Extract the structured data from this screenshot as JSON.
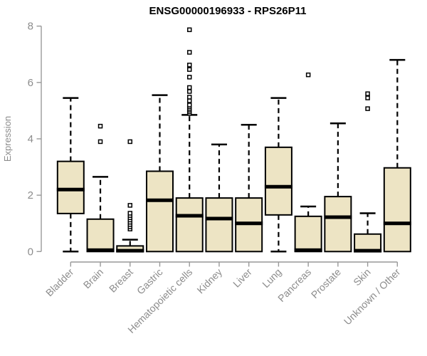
{
  "page": {
    "background": "#ffffff"
  },
  "chart_data": {
    "type": "boxplot",
    "title": "ENSG00000196933 - RPS26P11",
    "xlabel": "",
    "ylabel": "Expression",
    "ylim": [
      0,
      8
    ],
    "yticks": [
      0,
      2,
      4,
      6,
      8
    ],
    "grid": false,
    "legend": "none",
    "colors": {
      "box_fill": "#ede4c4",
      "box_stroke": "#000000",
      "median": "#000000",
      "whisker": "#000000",
      "axis": "#999999",
      "tick_text": "#8c8c8c",
      "title_text": "#000000"
    },
    "categories": [
      "Bladder",
      "Brain",
      "Breast",
      "Gastric",
      "Hematopoietic cells",
      "Kidney",
      "Liver",
      "Lung",
      "Pancreas",
      "Prostate",
      "Skin",
      "Unknown / Other"
    ],
    "series": [
      {
        "name": "Bladder",
        "whisker_low": 0,
        "q1": 1.35,
        "median": 2.2,
        "q3": 3.2,
        "whisker_high": 5.45,
        "outliers": []
      },
      {
        "name": "Brain",
        "whisker_low": 0,
        "q1": 0,
        "median": 0.05,
        "q3": 1.15,
        "whisker_high": 2.65,
        "outliers": [
          3.9,
          4.45
        ]
      },
      {
        "name": "Breast",
        "whisker_low": 0,
        "q1": 0,
        "median": 0.03,
        "q3": 0.2,
        "whisker_high": 0.42,
        "outliers": [
          0.8,
          0.88,
          0.96,
          1.04,
          1.12,
          1.2,
          1.28,
          1.36,
          1.64,
          3.9
        ]
      },
      {
        "name": "Gastric",
        "whisker_low": 0,
        "q1": 0,
        "median": 1.82,
        "q3": 2.85,
        "whisker_high": 5.55,
        "outliers": []
      },
      {
        "name": "Hematopoietic cells",
        "whisker_low": 0,
        "q1": 0,
        "median": 1.27,
        "q3": 1.9,
        "whisker_high": 4.85,
        "outliers": [
          4.9,
          4.96,
          5.02,
          5.08,
          5.14,
          5.2,
          5.35,
          5.48,
          5.68,
          5.82,
          6.19,
          6.46,
          6.62,
          7.07,
          7.87
        ]
      },
      {
        "name": "Kidney",
        "whisker_low": 0,
        "q1": 0,
        "median": 1.17,
        "q3": 1.9,
        "whisker_high": 3.8,
        "outliers": []
      },
      {
        "name": "Liver",
        "whisker_low": 0,
        "q1": 0,
        "median": 1.0,
        "q3": 1.9,
        "whisker_high": 4.5,
        "outliers": []
      },
      {
        "name": "Lung",
        "whisker_low": 0,
        "q1": 1.3,
        "median": 2.3,
        "q3": 3.7,
        "whisker_high": 5.45,
        "outliers": []
      },
      {
        "name": "Pancreas",
        "whisker_low": 0,
        "q1": 0,
        "median": 0.05,
        "q3": 1.25,
        "whisker_high": 1.6,
        "outliers": [
          6.27
        ]
      },
      {
        "name": "Prostate",
        "whisker_low": 0,
        "q1": 0,
        "median": 1.22,
        "q3": 1.95,
        "whisker_high": 4.55,
        "outliers": []
      },
      {
        "name": "Skin",
        "whisker_low": 0,
        "q1": 0,
        "median": 0.03,
        "q3": 0.62,
        "whisker_high": 1.36,
        "outliers": [
          5.07,
          5.45,
          5.6
        ]
      },
      {
        "name": "Unknown / Other",
        "whisker_low": 0,
        "q1": 0,
        "median": 1.0,
        "q3": 2.97,
        "whisker_high": 6.8,
        "outliers": []
      }
    ]
  }
}
